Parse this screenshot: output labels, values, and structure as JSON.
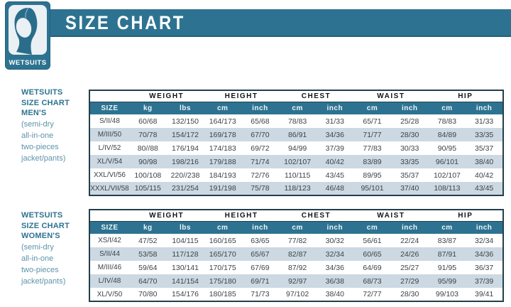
{
  "logo": {
    "text": "WETSUITS"
  },
  "header": {
    "title": "SIZE CHART"
  },
  "colors": {
    "teal": "#2d7391",
    "teal_dark": "#24607a",
    "row_alt": "#ccd9e3",
    "table_border": "#233f4b",
    "label_bold": "#2d7391",
    "label_sub": "#5d93ab"
  },
  "sections": [
    {
      "label_lines": [
        "WETSUITS",
        "SIZE CHART",
        "MEN'S"
      ],
      "label_sub_lines": [
        "(semi-dry",
        "all-in-one",
        "two-pieces",
        "jacket/pants)"
      ],
      "group_headers": [
        "WEIGHT",
        "HEIGHT",
        "CHEST",
        "WAIST",
        "HIP"
      ],
      "columns": [
        "SIZE",
        "kg",
        "lbs",
        "cm",
        "inch",
        "cm",
        "inch",
        "cm",
        "inch",
        "cm",
        "inch"
      ],
      "rows": [
        [
          "S/II/48",
          "60/68",
          "132/150",
          "164/173",
          "65/68",
          "78/83",
          "31/33",
          "65/71",
          "25/28",
          "78/83",
          "31/33"
        ],
        [
          "M/III/50",
          "70/78",
          "154/172",
          "169/178",
          "67/70",
          "86/91",
          "34/36",
          "71/77",
          "28/30",
          "84/89",
          "33/35"
        ],
        [
          "L/IV/52",
          "80//88",
          "176/194",
          "174/183",
          "69/72",
          "94/99",
          "37/39",
          "77/83",
          "30/33",
          "90/95",
          "35/37"
        ],
        [
          "XL/V/54",
          "90/98",
          "198/216",
          "179/188",
          "71/74",
          "102/107",
          "40/42",
          "83/89",
          "33/35",
          "96/101",
          "38/40"
        ],
        [
          "XXL/VI/56",
          "100/108",
          "220//238",
          "184/193",
          "72/76",
          "110/115",
          "43/45",
          "89/95",
          "35/37",
          "102/107",
          "40/42"
        ],
        [
          "XXXL/VII/58",
          "105/115",
          "231/254",
          "191/198",
          "75/78",
          "118/123",
          "46/48",
          "95/101",
          "37/40",
          "108/113",
          "43/45"
        ]
      ]
    },
    {
      "label_lines": [
        "WETSUITS",
        "SIZE CHART",
        "WOMEN'S"
      ],
      "label_sub_lines": [
        "(semi-dry",
        "all-in-one",
        "two-pieces",
        "jacket/pants)"
      ],
      "group_headers": [
        "WEIGHT",
        "HEIGHT",
        "CHEST",
        "WAIST",
        "HIP"
      ],
      "columns": [
        "SIZE",
        "kg",
        "lbs",
        "cm",
        "inch",
        "cm",
        "inch",
        "cm",
        "inch",
        "cm",
        "inch"
      ],
      "rows": [
        [
          "XS/I/42",
          "47/52",
          "104/115",
          "160/165",
          "63/65",
          "77/82",
          "30/32",
          "56/61",
          "22/24",
          "83/87",
          "32/34"
        ],
        [
          "S/II/44",
          "53/58",
          "117/128",
          "165/170",
          "65/67",
          "82/87",
          "32/34",
          "60/65",
          "24/26",
          "87/91",
          "34/36"
        ],
        [
          "M/III/46",
          "59/64",
          "130/141",
          "170/175",
          "67/69",
          "87/92",
          "34/36",
          "64/69",
          "25/27",
          "91/95",
          "36/37"
        ],
        [
          "L/IV/48",
          "64/70",
          "141/154",
          "175/180",
          "69/71",
          "92/97",
          "36/38",
          "68/73",
          "27/29",
          "95/99",
          "37/39"
        ],
        [
          "XL/V/50",
          "70/80",
          "154/176",
          "180/185",
          "71/73",
          "97/102",
          "38/40",
          "72/77",
          "28/30",
          "99/103",
          "39/41"
        ]
      ]
    }
  ]
}
